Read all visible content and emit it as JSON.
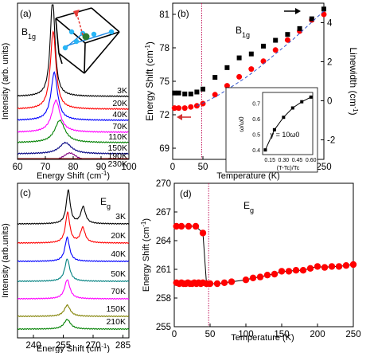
{
  "chart_data": [
    {
      "type": "line",
      "panel_label": "(a)",
      "annotation": "B1g",
      "xlabel": "Energy Shift (cm-1)",
      "ylabel": "Intensity (arb. units)",
      "xlim": [
        60,
        100
      ],
      "xticks": [
        "60",
        "70",
        "80",
        "90",
        "100"
      ],
      "offset_curves": [
        {
          "name": "3K",
          "color": "#000000",
          "center": 72.6,
          "width": 1.0,
          "height": 125
        },
        {
          "name": "20K",
          "color": "#ff0000",
          "center": 72.8,
          "width": 1.2,
          "height": 98
        },
        {
          "name": "40K",
          "color": "#0000ff",
          "center": 73.2,
          "width": 1.4,
          "height": 60
        },
        {
          "name": "70K",
          "color": "#ff00ff",
          "center": 73.8,
          "width": 1.8,
          "height": 40
        },
        {
          "name": "110K",
          "color": "#008000",
          "center": 75.2,
          "width": 2.2,
          "height": 28
        },
        {
          "name": "150K",
          "color": "#000080",
          "center": 77.2,
          "width": 2.6,
          "height": 14
        },
        {
          "name": "190K",
          "color": "#800080",
          "center": 78.8,
          "width": 3.0,
          "height": 11
        },
        {
          "name": "230K",
          "color": "#800000",
          "center": 80.8,
          "width": 3.4,
          "height": 9
        }
      ]
    },
    {
      "type": "scatter",
      "panel_label": "(b)",
      "annotation": "B1g",
      "xlabel": "Temperature (K)",
      "ylabel": "Energy Shift (cm-1)",
      "y2label": "Linewidth (cm-1)",
      "xlim": [
        0,
        250
      ],
      "ylim": [
        68,
        82
      ],
      "y2lim": [
        -3,
        5
      ],
      "xticks": [
        0,
        50,
        100,
        150,
        200,
        250
      ],
      "yticks": [
        69,
        72,
        75,
        78,
        81
      ],
      "y2ticks": [
        -2,
        0,
        2,
        4
      ],
      "vline_x": 48,
      "series": [
        {
          "axis": "left",
          "marker": "circle",
          "color": "#ff0000",
          "x": [
            3,
            10,
            20,
            30,
            40,
            50,
            70,
            90,
            110,
            130,
            150,
            170,
            190,
            210,
            230,
            250
          ],
          "y": [
            72.6,
            72.6,
            72.6,
            72.7,
            72.8,
            73.0,
            73.8,
            74.6,
            75.4,
            76.1,
            76.8,
            77.8,
            78.7,
            79.5,
            80.5,
            81.0
          ]
        },
        {
          "axis": "right",
          "marker": "square",
          "color": "#000000",
          "x": [
            3,
            10,
            20,
            30,
            40,
            50,
            70,
            90,
            110,
            130,
            150,
            170,
            190,
            210,
            230,
            250
          ],
          "y": [
            0.4,
            0.4,
            0.35,
            0.35,
            0.45,
            0.6,
            1.2,
            1.7,
            2.2,
            2.4,
            2.8,
            3.1,
            3.4,
            3.7,
            4.2,
            4.7
          ]
        },
        {
          "axis": "left",
          "marker": "none",
          "style": "dashed",
          "color": "#3355cc",
          "x": [
            40,
            60,
            80,
            100,
            120,
            140,
            160,
            180,
            200,
            220,
            240,
            250
          ],
          "y": [
            72.8,
            73.3,
            73.9,
            74.6,
            75.3,
            76.1,
            77.0,
            77.9,
            78.8,
            79.8,
            80.8,
            81.3
          ]
        }
      ],
      "inset": {
        "annotation": "γ = 10ω0",
        "xlabel": "(T-Tc)/Tc",
        "ylabel": "ω/ω0",
        "xlim": [
          0.07,
          0.62
        ],
        "ylim": [
          0.37,
          0.77
        ],
        "xticks": [
          "0.15",
          "0.30",
          "0.45",
          "0.60"
        ],
        "yticks": [
          "0.4",
          "0.5",
          "0.6",
          "0.7"
        ],
        "x": [
          0.1,
          0.2,
          0.3,
          0.4,
          0.5,
          0.6
        ],
        "y": [
          0.4,
          0.53,
          0.61,
          0.67,
          0.71,
          0.74
        ]
      }
    },
    {
      "type": "line",
      "panel_label": "(c)",
      "annotation": "Eg",
      "xlabel": "Energy Shift (cm-1)",
      "ylabel": "Intensity (arb.units)",
      "xlim": [
        232,
        288
      ],
      "xticks": [
        "240",
        "255",
        "270",
        "285"
      ],
      "offset_curves": [
        {
          "name": "3K",
          "color": "#000000",
          "center": 257.5,
          "width": 1.2,
          "height": 42,
          "satellite": 265.0
        },
        {
          "name": "20K",
          "color": "#ff0000",
          "center": 257.2,
          "width": 1.3,
          "height": 38,
          "satellite": 264.8
        },
        {
          "name": "40K",
          "color": "#0000ff",
          "center": 257.0,
          "width": 1.4,
          "height": 30,
          "satellite": 0
        },
        {
          "name": "50K",
          "color": "#008080",
          "center": 257.0,
          "width": 1.5,
          "height": 28,
          "satellite": 0
        },
        {
          "name": "70K",
          "color": "#ff00ff",
          "center": 257.0,
          "width": 1.6,
          "height": 24,
          "satellite": 0
        },
        {
          "name": "150K",
          "color": "#808000",
          "center": 257.0,
          "width": 1.8,
          "height": 14,
          "satellite": 0
        },
        {
          "name": "210K",
          "color": "#008000",
          "center": 257.0,
          "width": 2.0,
          "height": 12,
          "satellite": 0
        }
      ]
    },
    {
      "type": "line",
      "panel_label": "(d)",
      "annotation": "Eg",
      "xlabel": "Temperature (K)",
      "ylabel": "Energy Shift (cm-1)",
      "xlim": [
        0,
        250
      ],
      "ylim": [
        255,
        270
      ],
      "xticks": [
        0,
        50,
        100,
        150,
        200,
        250
      ],
      "yticks": [
        255,
        258,
        261,
        264,
        267,
        270
      ],
      "vline_x": 48,
      "series": [
        {
          "color": "#ff0000",
          "marker": "circle",
          "x": [
            3,
            10,
            20,
            30,
            40,
            45
          ],
          "y": [
            265.5,
            265.5,
            265.5,
            265.5,
            264.8,
            259.5
          ]
        },
        {
          "color": "#ff0000",
          "marker": "circle",
          "x": [
            3,
            7,
            10,
            13,
            16,
            19,
            22,
            25,
            28,
            31,
            34,
            37,
            40,
            45,
            50,
            60,
            70,
            80,
            100,
            110,
            120,
            130,
            140,
            150,
            160,
            170,
            180,
            190,
            200,
            210,
            220,
            230,
            240,
            250
          ],
          "y": [
            259.6,
            259.5,
            259.6,
            259.5,
            259.5,
            259.6,
            259.5,
            259.5,
            259.6,
            259.5,
            259.6,
            259.5,
            259.6,
            259.5,
            259.5,
            259.5,
            259.6,
            259.7,
            259.9,
            260.1,
            260.2,
            260.4,
            260.5,
            260.8,
            260.8,
            260.9,
            260.9,
            261.1,
            261.3,
            261.2,
            261.3,
            261.3,
            261.4,
            261.5
          ]
        }
      ]
    }
  ]
}
